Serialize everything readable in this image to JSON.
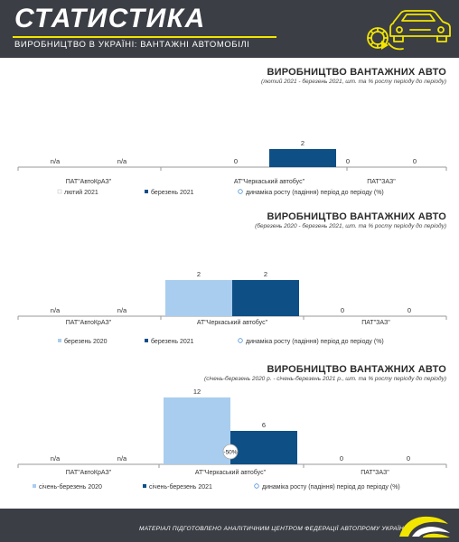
{
  "header": {
    "title": "СТАТИСТИКА",
    "subtitle": "ВИРОБНИЦТВО В УКРАЇНІ: ВАНТАЖНІ АВТОМОБІЛІ",
    "accent_color": "#f2e500",
    "icon": "car-gear-icon"
  },
  "footer": {
    "text": "МАТЕРІАЛ ПІДГОТОВЛЕНО АНАЛІТИЧНИМ ЦЕНТРОМ ФЕДЕРАЦІЇ АВТОПРОМУ УКРАЇНИ",
    "logo": "federation-logo-icon"
  },
  "colors": {
    "series_light": "#a9cdee",
    "series_dark": "#0e4f86",
    "marker_outline": "#4a90d9"
  },
  "chart_data": [
    {
      "type": "bar",
      "title": "ВИРОБНИЦТВО ВАНТАЖНИХ АВТО",
      "subtitle": "(лютий 2021 - березень 2021, шт. та % росту періоду до періоду)",
      "categories": [
        "ПАТ\"АвтоКрАЗ\"",
        "АТ\"Черкаський автобус\"",
        "ПАТ\"ЗАЗ\""
      ],
      "series": [
        {
          "name": "лютий 2021",
          "values": [
            null,
            0,
            0
          ],
          "labels": [
            "n/a",
            "0",
            "0"
          ]
        },
        {
          "name": "березень 2021",
          "values": [
            null,
            2,
            0
          ],
          "labels": [
            "n/a",
            "2",
            "0"
          ]
        }
      ],
      "growth": {
        "name": "динаміка росту (падіння) період до періоду (%)",
        "values": [
          null,
          null,
          null
        ]
      },
      "ylim": [
        0,
        2.2
      ]
    },
    {
      "type": "bar",
      "title": "ВИРОБНИЦТВО ВАНТАЖНИХ АВТО",
      "subtitle": "(березень 2020 - березень 2021, шт. та % росту періоду до періоду)",
      "categories": [
        "ПАТ\"АвтоКрАЗ\"",
        "АТ\"Черкаський автобус\"",
        "ПАТ\"ЗАЗ\""
      ],
      "series": [
        {
          "name": "березень 2020",
          "values": [
            null,
            2,
            0
          ],
          "labels": [
            "n/a",
            "2",
            "0"
          ]
        },
        {
          "name": "березень 2021",
          "values": [
            null,
            2,
            0
          ],
          "labels": [
            "n/a",
            "2",
            "0"
          ]
        }
      ],
      "growth": {
        "name": "динаміка росту (падіння) період до періоду (%)",
        "values": [
          null,
          null,
          null
        ]
      },
      "ylim": [
        0,
        2.2
      ]
    },
    {
      "type": "bar",
      "title": "ВИРОБНИЦТВО ВАНТАЖНИХ АВТО",
      "subtitle": "(січень-березень 2020 р. - січень-березень 2021 р., шт. та % росту періоду до періоду)",
      "categories": [
        "ПАТ\"АвтоКрАЗ\"",
        "АТ\"Черкаський автобус\"",
        "ПАТ\"ЗАЗ\""
      ],
      "series": [
        {
          "name": "січень-березень 2020",
          "values": [
            null,
            12,
            0
          ],
          "labels": [
            "n/a",
            "12",
            "0"
          ]
        },
        {
          "name": "січень-березень 2021",
          "values": [
            null,
            6,
            0
          ],
          "labels": [
            "n/a",
            "6",
            "0"
          ]
        }
      ],
      "growth": {
        "name": "динаміка росту (падіння) період до періоду (%)",
        "values": [
          null,
          -50,
          null
        ],
        "labels": [
          "",
          "-50%",
          ""
        ]
      },
      "ylim": [
        0,
        13
      ]
    }
  ]
}
